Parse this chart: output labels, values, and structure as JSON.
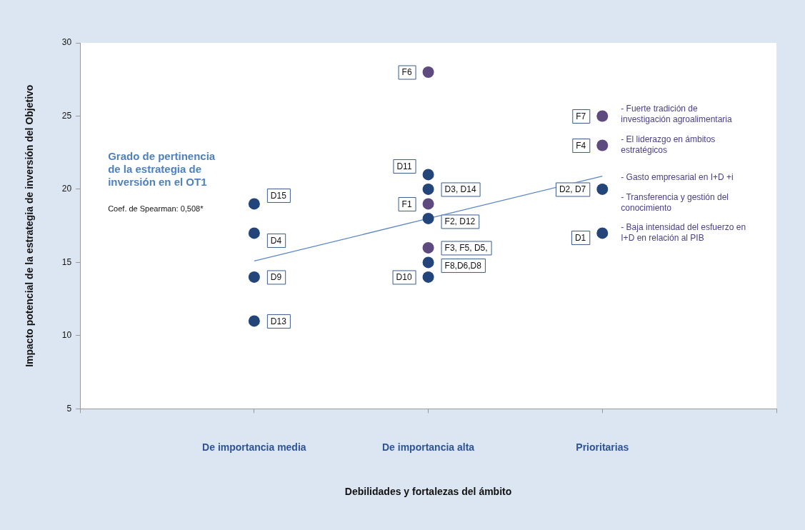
{
  "chart_data": {
    "type": "scatter",
    "xlabel": "Debilidades y fortalezas del ámbito",
    "ylabel": "Impacto potencial de la estrategia de inversión del Objetivo",
    "categories": [
      "De importancia media",
      "De importancia alta",
      "Prioritarias"
    ],
    "ylim": [
      5,
      30
    ],
    "yticks": [
      5,
      10,
      15,
      20,
      25,
      30
    ],
    "grid": false,
    "legend": false,
    "marker": "circle",
    "series": [
      {
        "color": "#23457a",
        "x": [
          "De importancia media",
          "De importancia media",
          "De importancia media",
          "De importancia media",
          "De importancia alta",
          "De importancia alta",
          "De importancia alta",
          "De importancia alta",
          "De importancia alta",
          "Prioritarias",
          "Prioritarias"
        ],
        "values": [
          19,
          17,
          14,
          11,
          21,
          20,
          18,
          15,
          14,
          20,
          17
        ]
      },
      {
        "color": "#5e4a7e",
        "x": [
          "De importancia alta",
          "De importancia alta",
          "De importancia alta",
          "Prioritarias",
          "Prioritarias"
        ],
        "values": [
          28,
          19,
          16,
          25,
          23
        ]
      },
      {
        "type": "line",
        "color": "#5b87c6",
        "marker": "none",
        "values": [
          15.1,
          18.0,
          20.9
        ]
      }
    ],
    "annotations": [
      "Grado de pertinencia de la estrategia de inversión en el OT1",
      "Coef. de Spearman: 0,508*",
      {
        "text": "D15",
        "x": "De importancia media",
        "y": 19
      },
      {
        "text": "D4",
        "x": "De importancia media",
        "y": 17
      },
      {
        "text": "D9",
        "x": "De importancia media",
        "y": 14
      },
      {
        "text": "D13",
        "x": "De importancia media",
        "y": 11
      },
      {
        "text": "F6",
        "x": "De importancia alta",
        "y": 28
      },
      {
        "text": "D11",
        "x": "De importancia alta",
        "y": 21
      },
      {
        "text": "D3, D14",
        "x": "De importancia alta",
        "y": 20
      },
      {
        "text": "F1",
        "x": "De importancia alta",
        "y": 19
      },
      {
        "text": "F2, D12",
        "x": "De importancia alta",
        "y": 18
      },
      {
        "text": "F3, F5, D5,",
        "x": "De importancia alta",
        "y": 16
      },
      {
        "text": "F8,D6,D8",
        "x": "De importancia alta",
        "y": 15
      },
      {
        "text": "D10",
        "x": "De importancia alta",
        "y": 14
      },
      {
        "text": "F7",
        "x": "Prioritarias",
        "y": 25
      },
      {
        "text": "F4",
        "x": "Prioritarias",
        "y": 23
      },
      {
        "text": "D2, D7",
        "x": "Prioritarias",
        "y": 20
      },
      {
        "text": "D1",
        "x": "Prioritarias",
        "y": 17
      },
      {
        "text": "- Fuerte tradición de investigación agroalimentaria",
        "x": "Prioritarias",
        "y": 25
      },
      {
        "text": "- El liderazgo en ámbitos estratégicos",
        "x": "Prioritarias",
        "y": 23
      },
      {
        "text": "- Gasto empresarial en I+D +i",
        "x": "Prioritarias",
        "y": 20
      },
      {
        "text": "- Transferencia y gestión del conocimiento",
        "x": "Prioritarias",
        "y": 20
      },
      {
        "text": "- Baja intensidad del esfuerzo en I+D en relación al PIB",
        "x": "Prioritarias",
        "y": 17
      }
    ]
  }
}
